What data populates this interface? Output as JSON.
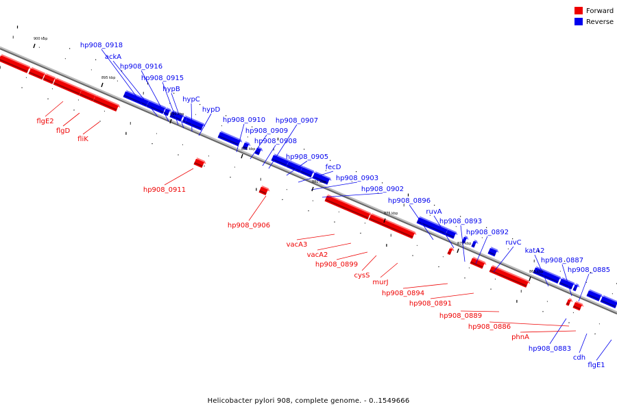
{
  "caption": "Helicobacter pylori 908, complete genome. - 0..1549666",
  "colors": {
    "forward": "#ee0000",
    "reverse": "#0000ee",
    "axis": "#888888"
  },
  "legend": [
    {
      "label": "Forward",
      "color": "#ee0000"
    },
    {
      "label": "Reverse",
      "color": "#0000ee"
    }
  ],
  "kbp_markers": [
    "900 kbp",
    "895 kbp",
    "890 kbp",
    "885 kbp",
    "880 kbp",
    "875 kbp",
    "870 kbp",
    "865 kbp"
  ],
  "reverse_genes": [
    "hp908_0918",
    "ackA",
    "hp908_0916",
    "hp908_0915",
    "hypB",
    "hypC",
    "hypD",
    "hp908_0910",
    "hp908_0909",
    "hp908_0908",
    "hp908_0907",
    "hp908_0905",
    "fecD",
    "hp908_0903",
    "hp908_0902",
    "hp908_0896",
    "ruvA",
    "hp908_0893",
    "hp908_0892",
    "ruvC",
    "katA2",
    "hp908_0887",
    "hp908_0885",
    "hp908_0883",
    "cdh",
    "flgE1"
  ],
  "forward_genes": [
    "flgE2",
    "flgD",
    "fliK",
    "hp908_0911",
    "hp908_0906",
    "vacA3",
    "vacA2",
    "hp908_0899",
    "cysS",
    "murJ",
    "hp908_0894",
    "hp908_0891",
    "hp908_0889",
    "hp908_0886",
    "phnA"
  ]
}
